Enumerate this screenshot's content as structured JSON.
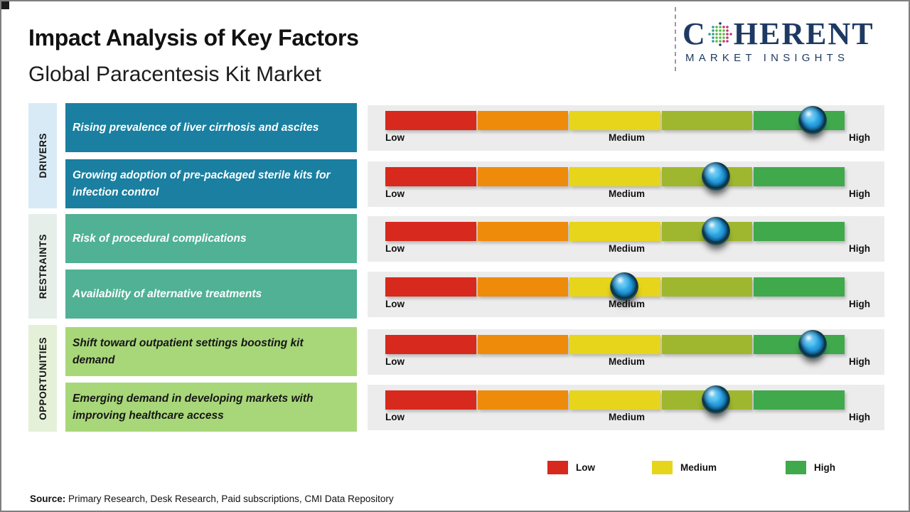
{
  "header": {
    "title": "Impact Analysis of Key Factors",
    "subtitle": "Global Paracentesis Kit Market"
  },
  "logo": {
    "brand_pre": "C",
    "brand_post": "HERENT",
    "tagline": "MARKET INSIGHTS",
    "brand_color": "#1e3a63"
  },
  "scale": {
    "low": "Low",
    "medium": "Medium",
    "high": "High"
  },
  "bar": {
    "segment_colors": [
      "#d7291d",
      "#ef8b0b",
      "#e6d51a",
      "#9eb72f",
      "#3fa94c"
    ],
    "panel_color": "#ececec"
  },
  "categories": [
    {
      "label": "DRIVERS",
      "strip_color": "#d8eaf6",
      "box_color": "#1a7fa0",
      "text_color": "#ffffff",
      "factors": [
        {
          "text": "Rising prevalence of liver cirrhosis and ascites",
          "impact_pct": 93
        },
        {
          "text": "Growing adoption of pre-packaged sterile kits for infection control",
          "impact_pct": 72
        }
      ]
    },
    {
      "label": "RESTRAINTS",
      "strip_color": "#e6eeea",
      "box_color": "#50b194",
      "text_color": "#ffffff",
      "factors": [
        {
          "text": "Risk of procedural complications",
          "impact_pct": 72
        },
        {
          "text": "Availability of alternative treatments",
          "impact_pct": 52
        }
      ]
    },
    {
      "label": "OPPORTUNITIES",
      "strip_color": "#e4f0d8",
      "box_color": "#a8d779",
      "text_color": "#161616",
      "factors": [
        {
          "text": "Shift toward outpatient settings boosting kit demand",
          "impact_pct": 93
        },
        {
          "text": "Emerging demand in developing markets with improving healthcare access",
          "impact_pct": 72
        }
      ]
    }
  ],
  "legend": {
    "items": [
      {
        "label": "Low",
        "color": "#d7291d"
      },
      {
        "label": "Medium",
        "color": "#e6d51a"
      },
      {
        "label": "High",
        "color": "#3fa94c"
      }
    ]
  },
  "source": {
    "prefix": "Source:",
    "text": " Primary Research, Desk Research, Paid subscriptions, CMI Data Repository"
  },
  "chart_data": {
    "type": "bar",
    "title": "Impact Analysis of Key Factors",
    "subtitle": "Global Paracentesis Kit Market",
    "scale": [
      "Low",
      "Medium",
      "High"
    ],
    "segment_colors": [
      "#d7291d",
      "#ef8b0b",
      "#e6d51a",
      "#9eb72f",
      "#3fa94c"
    ],
    "legend_position": "bottom-right",
    "series": [
      {
        "group": "Drivers",
        "factor": "Rising prevalence of liver cirrhosis and ascites",
        "impact": "High",
        "position_pct": 93
      },
      {
        "group": "Drivers",
        "factor": "Growing adoption of pre-packaged sterile kits for infection control",
        "impact": "Medium-High",
        "position_pct": 72
      },
      {
        "group": "Restraints",
        "factor": "Risk of procedural complications",
        "impact": "Medium-High",
        "position_pct": 72
      },
      {
        "group": "Restraints",
        "factor": "Availability of alternative treatments",
        "impact": "Medium",
        "position_pct": 52
      },
      {
        "group": "Opportunities",
        "factor": "Shift toward outpatient settings boosting kit demand",
        "impact": "High",
        "position_pct": 93
      },
      {
        "group": "Opportunities",
        "factor": "Emerging demand in developing markets with improving healthcare access",
        "impact": "Medium-High",
        "position_pct": 72
      }
    ]
  }
}
